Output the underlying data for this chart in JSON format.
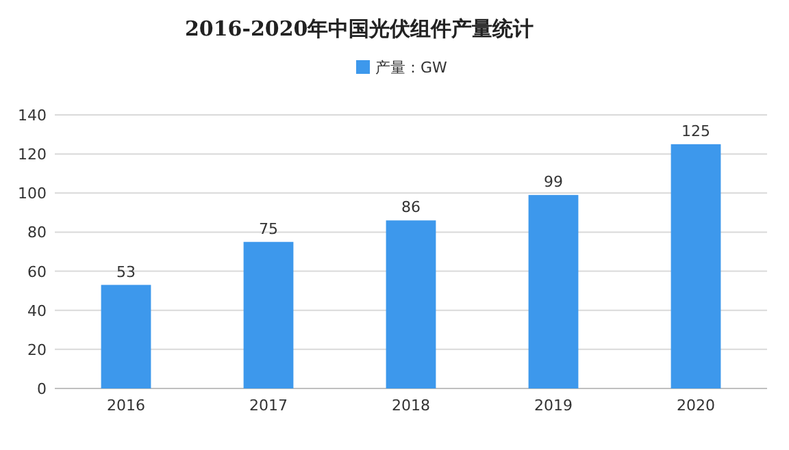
{
  "chart_data": {
    "type": "bar",
    "title": "2016-2020年中国光伏组件产量统计",
    "categories": [
      "2016",
      "2017",
      "2018",
      "2019",
      "2020"
    ],
    "series": [
      {
        "name": "产量：GW",
        "color": "#3d98ec",
        "values": [
          53,
          75,
          86,
          99,
          125
        ]
      }
    ],
    "ylim": [
      0,
      140
    ],
    "yticks": [
      0,
      20,
      40,
      60,
      80,
      100,
      120,
      140
    ],
    "grid": "y",
    "legend": "top",
    "data_labels": true
  }
}
